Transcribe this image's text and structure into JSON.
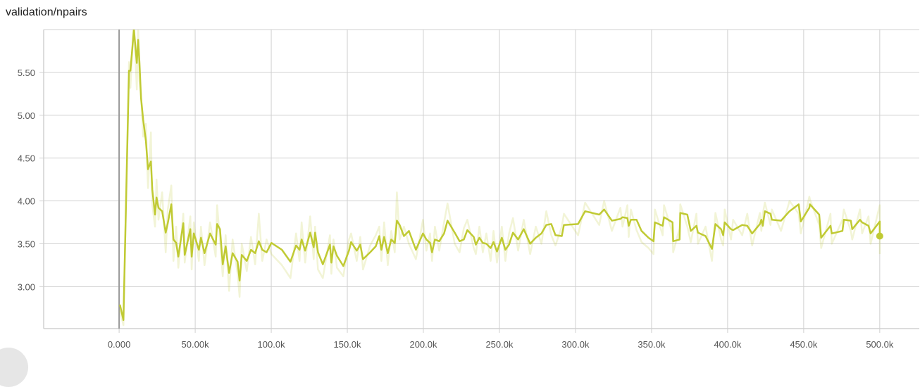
{
  "title": "validation/npairs",
  "colors": {
    "series": "#c0ca33",
    "grid": "#d0d0d0",
    "zero_line": "#999999"
  },
  "chart_data": {
    "type": "line",
    "title": "validation/npairs",
    "xlabel": "",
    "ylabel": "",
    "xlim": [
      -49600,
      526000
    ],
    "ylim": [
      2.51,
      6.0
    ],
    "grid": true,
    "legend": "none",
    "x_ticks": [
      "0.000",
      "50.00k",
      "100.0k",
      "150.0k",
      "200.0k",
      "250.0k",
      "300.0k",
      "350.0k",
      "400.0k",
      "450.0k",
      "500.0k"
    ],
    "x_tick_values": [
      0,
      50000,
      100000,
      150000,
      200000,
      250000,
      300000,
      350000,
      400000,
      450000,
      500000
    ],
    "y_ticks": [
      "3.00",
      "3.50",
      "4.00",
      "4.50",
      "5.00",
      "5.50"
    ],
    "y_tick_values": [
      3.0,
      3.5,
      4.0,
      4.5,
      5.0,
      5.5
    ],
    "x_unit": "k",
    "steps_k": [
      0.5,
      2.8,
      6.5,
      7.4,
      9.7,
      11.6,
      12.5,
      13.4,
      14.4,
      15.8,
      17.6,
      19.0,
      20.9,
      21.8,
      23.6,
      24.6,
      25.9,
      28.3,
      30.6,
      32.0,
      34.3,
      35.7,
      37.5,
      38.9,
      42.2,
      43.1,
      46.8,
      47.7,
      49.1,
      52.4,
      53.8,
      56.1,
      59.8,
      63.5,
      64.4,
      66.3,
      68.1,
      70.0,
      72.3,
      74.6,
      77.9,
      79.2,
      80.6,
      83.9,
      86.7,
      89.4,
      91.8,
      94.1,
      96.9,
      100.1,
      107.0,
      112.6,
      116.3,
      118.6,
      120.0,
      122.3,
      125.6,
      127.9,
      128.8,
      130.7,
      133.9,
      138.6,
      139.5,
      140.9,
      143.2,
      147.4,
      151.1,
      152.5,
      156.2,
      158.5,
      160.3,
      165.0,
      168.7,
      171.0,
      172.4,
      174.2,
      176.6,
      178.9,
      181.2,
      182.6,
      184.4,
      187.2,
      190.5,
      195.1,
      199.7,
      202.0,
      204.4,
      205.7,
      207.6,
      210.4,
      213.6,
      215.9,
      220.6,
      223.8,
      226.6,
      228.9,
      233.1,
      234.5,
      236.8,
      239.1,
      241.4,
      244.2,
      246.1,
      248.4,
      251.6,
      253.9,
      256.3,
      258.9,
      262.3,
      266.0,
      270.2,
      273.9,
      277.6,
      280.8,
      284.1,
      286.8,
      291.0,
      292.4,
      301.7,
      306.3,
      315.6,
      318.8,
      323.9,
      329.5,
      330.9,
      334.1,
      335.0,
      336.4,
      340.1,
      343.4,
      348.0,
      351.3,
      352.2,
      357.3,
      358.2,
      363.8,
      364.2,
      368.4,
      368.9,
      373.5,
      375.8,
      379.5,
      380.5,
      385.5,
      389.7,
      392.0,
      395.7,
      397.1,
      398.1,
      402.2,
      403.6,
      409.6,
      412.9,
      416.1,
      421.2,
      422.2,
      423.1,
      424.5,
      428.2,
      429.1,
      435.1,
      440.7,
      446.7,
      448.1,
      453.7,
      454.1,
      460.2,
      461.5,
      467.6,
      468.5,
      475.5,
      476.4,
      481.0,
      481.9,
      487.0,
      488.4,
      492.6,
      494.0,
      500.0,
      500.0
    ],
    "series": [
      {
        "role": "smoothed",
        "values": [
          2.79,
          2.61,
          5.52,
          5.52,
          6.0,
          5.61,
          5.88,
          5.61,
          5.2,
          4.95,
          4.7,
          4.37,
          4.46,
          4.13,
          3.84,
          4.04,
          3.92,
          3.88,
          3.63,
          3.74,
          3.96,
          3.55,
          3.51,
          3.35,
          3.74,
          3.37,
          3.67,
          3.35,
          3.62,
          3.43,
          3.57,
          3.39,
          3.62,
          3.49,
          3.73,
          3.67,
          3.26,
          3.47,
          3.16,
          3.39,
          3.29,
          3.07,
          3.37,
          3.3,
          3.43,
          3.39,
          3.53,
          3.43,
          3.4,
          3.51,
          3.43,
          3.29,
          3.48,
          3.43,
          3.55,
          3.42,
          3.63,
          3.46,
          3.63,
          3.4,
          3.26,
          3.49,
          3.28,
          3.47,
          3.36,
          3.24,
          3.42,
          3.52,
          3.42,
          3.49,
          3.32,
          3.4,
          3.47,
          3.59,
          3.43,
          3.58,
          3.39,
          3.55,
          3.51,
          3.77,
          3.72,
          3.59,
          3.65,
          3.43,
          3.62,
          3.55,
          3.51,
          3.4,
          3.55,
          3.53,
          3.62,
          3.77,
          3.63,
          3.53,
          3.55,
          3.66,
          3.58,
          3.49,
          3.57,
          3.51,
          3.5,
          3.45,
          3.52,
          3.41,
          3.57,
          3.43,
          3.49,
          3.63,
          3.55,
          3.67,
          3.5,
          3.57,
          3.62,
          3.72,
          3.73,
          3.6,
          3.59,
          3.72,
          3.73,
          3.88,
          3.84,
          3.9,
          3.77,
          3.79,
          3.81,
          3.8,
          3.71,
          3.78,
          3.78,
          3.65,
          3.57,
          3.53,
          3.75,
          3.71,
          3.81,
          3.75,
          3.53,
          3.55,
          3.86,
          3.84,
          3.65,
          3.71,
          3.63,
          3.59,
          3.44,
          3.73,
          3.67,
          3.6,
          3.75,
          3.67,
          3.66,
          3.72,
          3.71,
          3.62,
          3.73,
          3.78,
          3.71,
          3.88,
          3.85,
          3.78,
          3.77,
          3.88,
          3.96,
          3.76,
          3.92,
          3.96,
          3.84,
          3.57,
          3.71,
          3.62,
          3.65,
          3.78,
          3.77,
          3.67,
          3.78,
          3.75,
          3.71,
          3.62,
          3.76,
          3.59
        ]
      },
      {
        "role": "raw",
        "values": [
          2.72,
          2.55,
          5.62,
          5.32,
          6.1,
          5.3,
          6.05,
          5.4,
          5.25,
          4.75,
          4.9,
          4.15,
          4.8,
          3.95,
          3.7,
          4.25,
          3.78,
          4.1,
          3.4,
          3.9,
          4.18,
          3.3,
          3.7,
          3.22,
          3.85,
          3.28,
          3.82,
          3.2,
          3.75,
          3.3,
          3.7,
          3.25,
          3.75,
          3.35,
          3.95,
          3.55,
          3.12,
          3.6,
          2.95,
          3.55,
          3.15,
          2.88,
          3.5,
          3.18,
          3.58,
          3.26,
          3.85,
          3.3,
          3.55,
          3.38,
          3.25,
          3.1,
          3.62,
          3.3,
          3.75,
          3.28,
          3.82,
          3.32,
          3.7,
          3.2,
          3.1,
          3.6,
          3.15,
          3.55,
          3.22,
          3.12,
          3.55,
          3.62,
          3.3,
          3.58,
          3.2,
          3.48,
          3.6,
          3.7,
          3.3,
          3.75,
          3.25,
          3.65,
          3.4,
          4.1,
          3.55,
          3.7,
          3.5,
          3.32,
          3.78,
          3.42,
          3.62,
          3.3,
          3.7,
          3.42,
          3.75,
          3.97,
          3.5,
          3.4,
          3.68,
          3.78,
          3.45,
          3.38,
          3.7,
          3.4,
          3.62,
          3.3,
          3.65,
          3.28,
          3.7,
          3.3,
          3.62,
          3.8,
          3.42,
          3.78,
          3.38,
          3.7,
          3.5,
          3.88,
          3.6,
          3.48,
          3.7,
          3.85,
          3.6,
          3.98,
          3.72,
          4.0,
          3.65,
          3.92,
          3.7,
          3.95,
          3.58,
          3.9,
          3.66,
          3.52,
          3.45,
          3.38,
          3.9,
          3.6,
          3.95,
          3.62,
          3.4,
          3.68,
          3.96,
          3.7,
          3.52,
          3.85,
          3.5,
          3.7,
          3.3,
          3.86,
          3.55,
          3.48,
          3.9,
          3.55,
          3.78,
          3.6,
          3.85,
          3.48,
          3.86,
          3.65,
          3.85,
          3.98,
          3.72,
          3.9,
          3.65,
          4.0,
          3.85,
          3.62,
          4.05,
          4.02,
          3.72,
          3.45,
          3.85,
          3.5,
          3.78,
          3.9,
          3.65,
          3.55,
          3.9,
          3.62,
          3.82,
          3.5,
          3.95,
          3.38
        ]
      }
    ]
  }
}
